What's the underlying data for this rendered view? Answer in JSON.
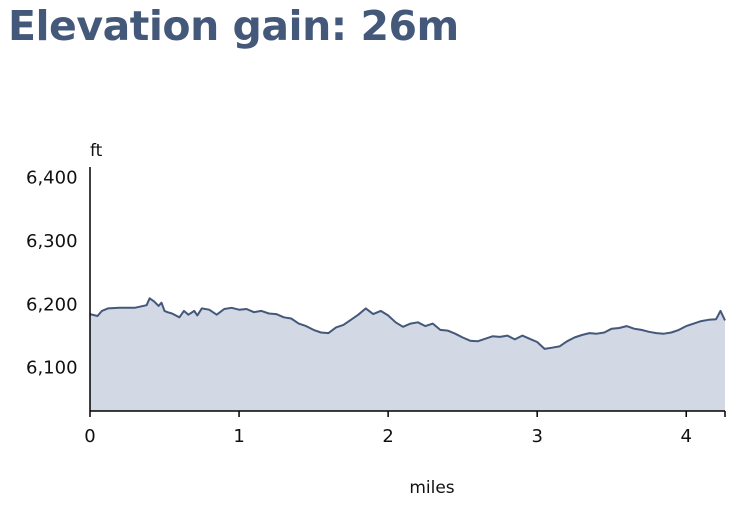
{
  "title": "Elevation gain: 26m",
  "chart_data": {
    "type": "area",
    "title": "Elevation gain: 26m",
    "xlabel": "miles",
    "ylabel": "ft",
    "xlim": [
      0,
      4.26
    ],
    "ylim": [
      6030,
      6420
    ],
    "x_ticks": [
      0,
      1,
      2,
      3,
      4
    ],
    "x_tick_labels": [
      "0",
      "1",
      "2",
      "3",
      "4"
    ],
    "y_ticks": [
      6100,
      6200,
      6300,
      6400
    ],
    "y_tick_labels": [
      "6,100",
      "6,200",
      "6,300",
      "6,400"
    ],
    "grid": false,
    "colors": {
      "line": "#44587a",
      "fill": "#d3d8e5",
      "axis": "#000000"
    },
    "x": [
      0,
      0.05,
      0.08,
      0.12,
      0.2,
      0.3,
      0.38,
      0.4,
      0.43,
      0.46,
      0.48,
      0.5,
      0.52,
      0.55,
      0.6,
      0.63,
      0.66,
      0.7,
      0.72,
      0.75,
      0.8,
      0.85,
      0.9,
      0.95,
      1.0,
      1.05,
      1.1,
      1.15,
      1.2,
      1.25,
      1.3,
      1.35,
      1.4,
      1.45,
      1.5,
      1.55,
      1.6,
      1.65,
      1.7,
      1.75,
      1.8,
      1.85,
      1.9,
      1.95,
      2.0,
      2.05,
      2.1,
      2.15,
      2.2,
      2.25,
      2.3,
      2.35,
      2.4,
      2.45,
      2.5,
      2.55,
      2.6,
      2.65,
      2.7,
      2.75,
      2.8,
      2.85,
      2.9,
      2.95,
      3.0,
      3.05,
      3.1,
      3.15,
      3.2,
      3.25,
      3.3,
      3.35,
      3.4,
      3.45,
      3.5,
      3.55,
      3.6,
      3.65,
      3.7,
      3.75,
      3.8,
      3.85,
      3.9,
      3.95,
      4.0,
      4.05,
      4.1,
      4.15,
      4.2,
      4.23,
      4.26
    ],
    "y": [
      6183,
      6180,
      6188,
      6192,
      6193,
      6193,
      6197,
      6208,
      6203,
      6196,
      6201,
      6188,
      6186,
      6184,
      6178,
      6188,
      6182,
      6188,
      6181,
      6192,
      6190,
      6182,
      6191,
      6193,
      6190,
      6191,
      6186,
      6188,
      6184,
      6183,
      6178,
      6176,
      6168,
      6164,
      6158,
      6154,
      6153,
      6162,
      6166,
      6174,
      6182,
      6192,
      6183,
      6188,
      6181,
      6170,
      6163,
      6168,
      6170,
      6164,
      6168,
      6158,
      6157,
      6152,
      6146,
      6141,
      6140,
      6144,
      6148,
      6147,
      6149,
      6143,
      6149,
      6144,
      6139,
      6128,
      6130,
      6132,
      6140,
      6146,
      6150,
      6153,
      6152,
      6154,
      6160,
      6161,
      6164,
      6160,
      6158,
      6155,
      6153,
      6152,
      6154,
      6158,
      6164,
      6168,
      6172,
      6174,
      6175,
      6188,
      6173
    ]
  }
}
